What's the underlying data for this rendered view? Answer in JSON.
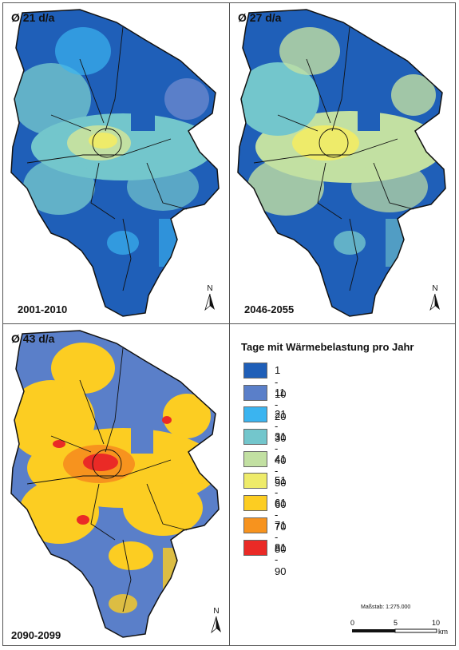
{
  "panels": [
    {
      "average": "Ø 21 d/a",
      "period": "2001-2010"
    },
    {
      "average": "Ø 27 d/a",
      "period": "2046-2055"
    },
    {
      "average": "Ø 43 d/a",
      "period": "2090-2099"
    }
  ],
  "north_label": "N",
  "legend": {
    "title": "Tage mit Wärmebelastung pro Jahr",
    "items": [
      {
        "label": "1 - 10",
        "color": "#1f5fb8"
      },
      {
        "label": "11 - 20",
        "color": "#5a7fc9"
      },
      {
        "label": "21 - 30",
        "color": "#3ab4f0"
      },
      {
        "label": "31 - 40",
        "color": "#73c6cc"
      },
      {
        "label": "41 - 50",
        "color": "#c2e0a2"
      },
      {
        "label": "51 - 60",
        "color": "#eeeb6a"
      },
      {
        "label": "61 - 70",
        "color": "#fccd22"
      },
      {
        "label": "71 - 80",
        "color": "#f7931e"
      },
      {
        "label": "81 - 90",
        "color": "#ea2a26"
      }
    ]
  },
  "scale": {
    "label": "Maßstab: 1:275.000",
    "ticks": [
      "0",
      "5",
      "10"
    ],
    "unit": "km"
  }
}
